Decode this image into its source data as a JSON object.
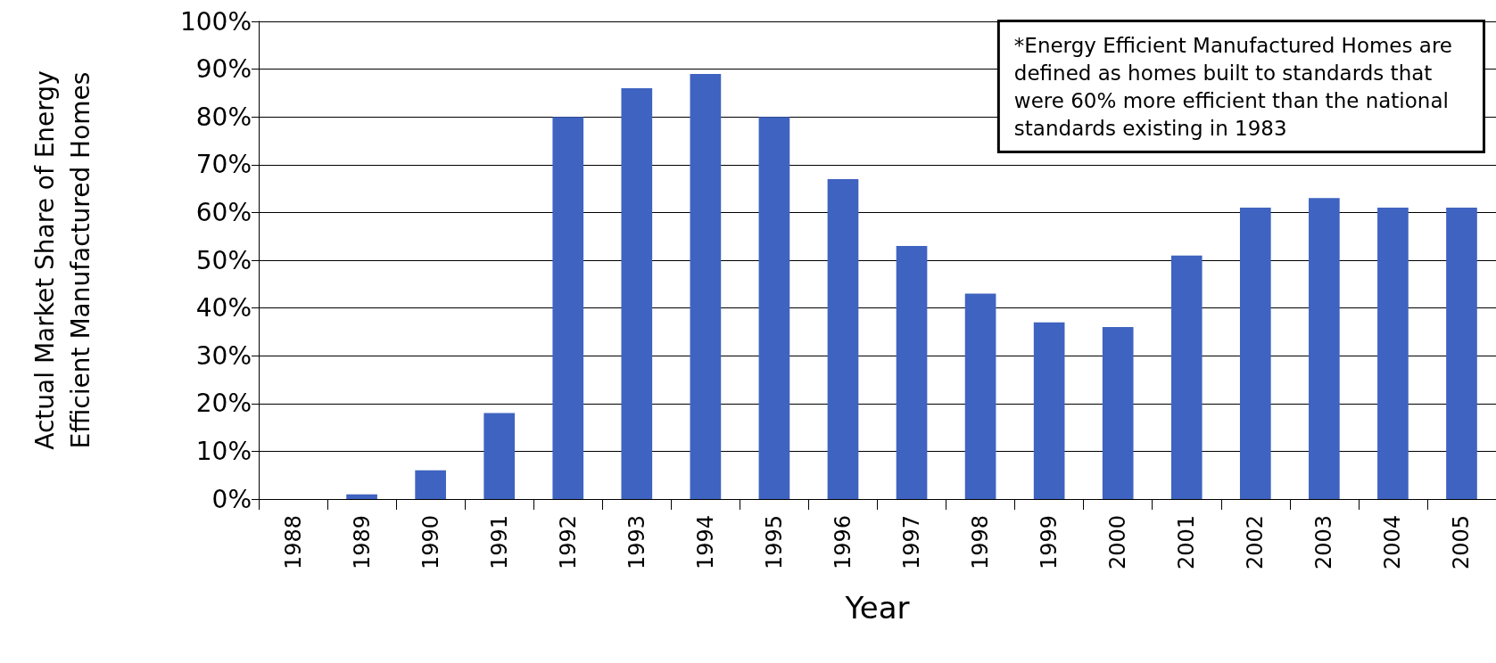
{
  "chart_data": {
    "type": "bar",
    "xlabel": "Year",
    "ylabel": "Actual Market Share of Energy\nEfficient Manufactured Homes",
    "categories": [
      "1988",
      "1989",
      "1990",
      "1991",
      "1992",
      "1993",
      "1994",
      "1995",
      "1996",
      "1997",
      "1998",
      "1999",
      "2000",
      "2001",
      "2002",
      "2003",
      "2004",
      "2005"
    ],
    "values": [
      0,
      1,
      6,
      18,
      80,
      86,
      89,
      80,
      67,
      53,
      43,
      37,
      36,
      51,
      61,
      63,
      61,
      61
    ],
    "color": "#3f63c0",
    "ylim": [
      0,
      100
    ],
    "yticks": [
      {
        "value": 0,
        "label": "0%"
      },
      {
        "value": 10,
        "label": "10%"
      },
      {
        "value": 20,
        "label": "20%"
      },
      {
        "value": 30,
        "label": "30%"
      },
      {
        "value": 40,
        "label": "40%"
      },
      {
        "value": 50,
        "label": "50%"
      },
      {
        "value": 60,
        "label": "60%"
      },
      {
        "value": 70,
        "label": "70%"
      },
      {
        "value": 80,
        "label": "80%"
      },
      {
        "value": 90,
        "label": "90%"
      },
      {
        "value": 100,
        "label": "100%"
      }
    ],
    "grid": "y",
    "annotations": [
      "*Energy Efficient Manufactured Homes are\ndefined as homes built to standards that\nwere 60% more efficient than the national\nstandards existing in 1983"
    ]
  }
}
